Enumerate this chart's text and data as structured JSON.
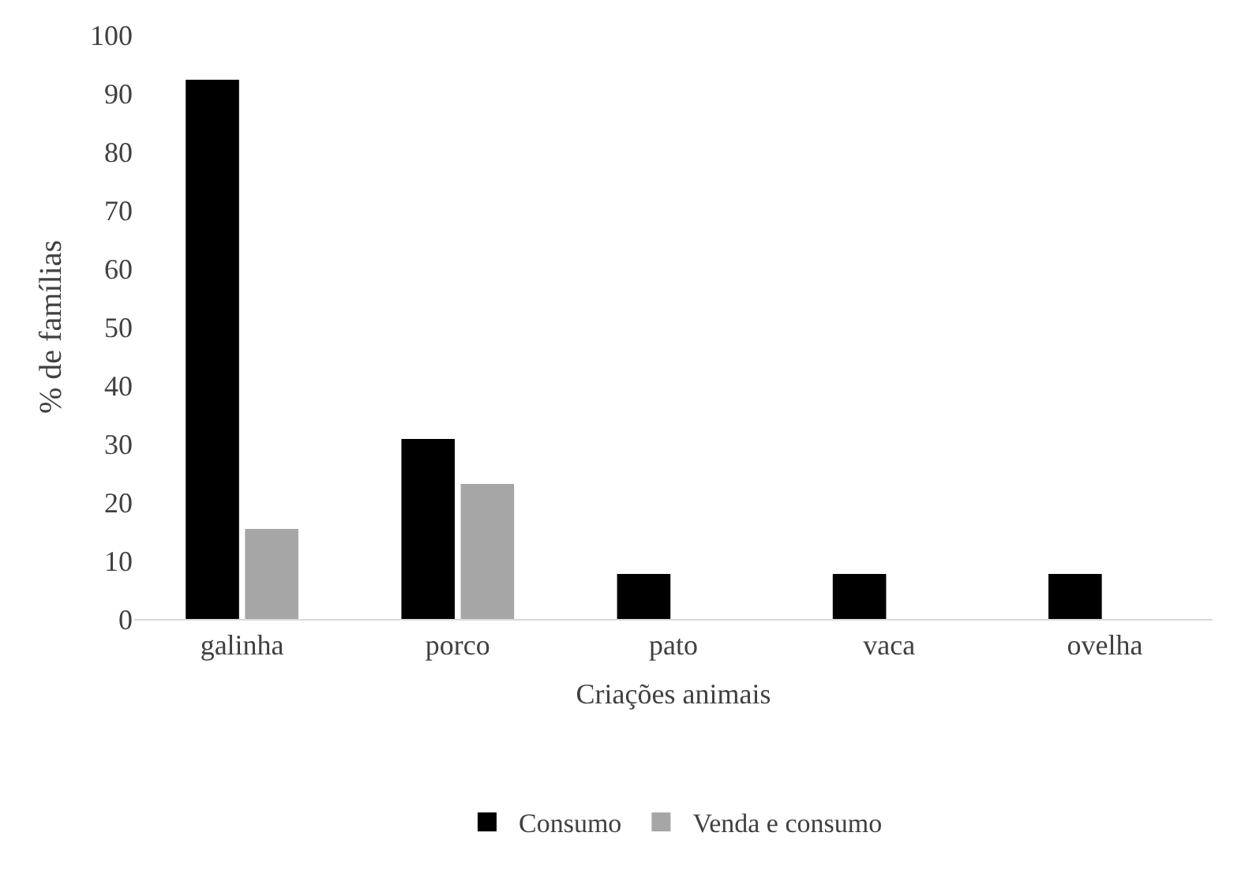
{
  "chart_data": {
    "type": "bar",
    "xlabel": "Criações animais",
    "ylabel": "% de famílias",
    "categories": [
      "galinha",
      "porco",
      "pato",
      "vaca",
      "ovelha"
    ],
    "series": [
      {
        "name": "Consumo",
        "color": "#000000",
        "values": [
          92.3,
          30.8,
          7.7,
          7.7,
          7.7
        ]
      },
      {
        "name": "Venda e consumo",
        "color": "#a6a6a6",
        "values": [
          15.4,
          23.1,
          null,
          null,
          null
        ]
      }
    ],
    "ylim": [
      0,
      100
    ],
    "yticks": [
      0,
      10,
      20,
      30,
      40,
      50,
      60,
      70,
      80,
      90,
      100
    ],
    "legend": "bottom"
  }
}
